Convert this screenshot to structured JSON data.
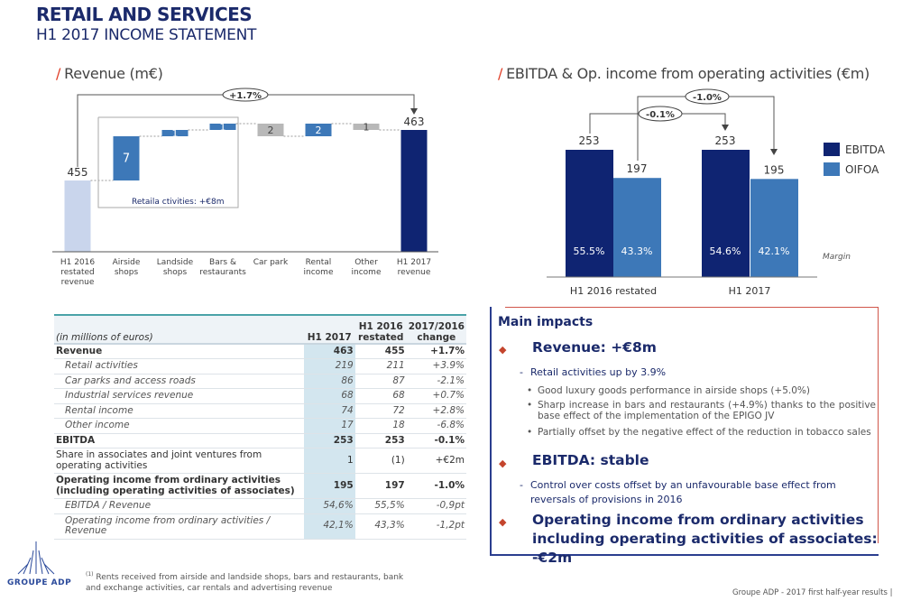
{
  "header": {
    "title": "RETAIL AND SERVICES",
    "subtitle": "H1 2017 INCOME STATEMENT"
  },
  "revenue_section": {
    "slash": "/",
    "title": "Revenue (m€)"
  },
  "ebitda_section": {
    "slash": "/",
    "title": "EBITDA & Op. income from operating activities (€m)"
  },
  "colors": {
    "navy": "#0f2472",
    "mid_blue": "#3d78b8",
    "light_blue": "#c9d5ec",
    "grey": "#b8b8b8",
    "accent_red": "#e03b24"
  },
  "chart_data": [
    {
      "type": "waterfall",
      "title": "Revenue (m€)",
      "categories": [
        "H1 2016 restated revenue",
        "Airside shops",
        "Landside shops",
        "Bars & restaurants",
        "Car park",
        "Rental income",
        "Other income",
        "H1 2017 revenue"
      ],
      "category_lines": [
        [
          "H1 2016",
          "restated",
          "revenue"
        ],
        [
          "Airside",
          "shops"
        ],
        [
          "Landside",
          "shops"
        ],
        [
          "Bars &",
          "restaurants"
        ],
        [
          "Car park"
        ],
        [
          "Rental",
          "income"
        ],
        [
          "Other",
          "income"
        ],
        [
          "H1 2017",
          "revenue"
        ]
      ],
      "values": [
        455,
        7,
        1,
        1,
        -2,
        2,
        -1,
        463
      ],
      "labels": [
        "455",
        "7",
        "1",
        "1",
        "2",
        "2",
        "1",
        "463"
      ],
      "kinds": [
        "total",
        "up",
        "up",
        "up",
        "down",
        "up",
        "down",
        "total"
      ],
      "change_label": "+1.7%",
      "annotation": "Retaila ctivities: +€8m"
    },
    {
      "type": "bar",
      "title": "EBITDA & Op. income from operating activities (€m)",
      "categories": [
        "H1 2016  restated",
        "H1 2017"
      ],
      "series": [
        {
          "name": "EBITDA",
          "values": [
            253,
            253
          ],
          "margins": [
            "55.5%",
            "54.6%"
          ]
        },
        {
          "name": "OIFOA",
          "values": [
            197,
            195
          ],
          "margins": [
            "43.3%",
            "42.1%"
          ]
        }
      ],
      "change_labels": {
        "ebitda": "-0.1%",
        "oifoa": "-1.0%"
      },
      "margin_label": "Margin",
      "legend": "right"
    }
  ],
  "table": {
    "header": [
      "(in millions of euros)",
      "H1 2017",
      "H1 2016 restated",
      "2017/2016 change"
    ],
    "rows": [
      {
        "label": "Revenue",
        "c1": "463",
        "c2": "455",
        "c3": "+1.7%",
        "style": "b"
      },
      {
        "label": "Retail activities",
        "c1": "219",
        "c2": "211",
        "c3": "+3.9%",
        "style": "i"
      },
      {
        "label": "Car parks and access roads",
        "c1": "86",
        "c2": "87",
        "c3": "-2.1%",
        "style": "i"
      },
      {
        "label": "Industrial services revenue",
        "c1": "68",
        "c2": "68",
        "c3": "+0.7%",
        "style": "i"
      },
      {
        "label": "Rental income",
        "c1": "74",
        "c2": "72",
        "c3": "+2.8%",
        "style": "i"
      },
      {
        "label": "Other income",
        "c1": "17",
        "c2": "18",
        "c3": "-6.8%",
        "style": "i"
      },
      {
        "label": "EBITDA",
        "c1": "253",
        "c2": "253",
        "c3": "-0.1%",
        "style": "b"
      },
      {
        "label": "Share in associates and joint ventures from operating activities",
        "c1": "1",
        "c2": "(1)",
        "c3": "+€2m",
        "style": "n"
      },
      {
        "label": "Operating income from ordinary activities (including operating activities of associates)",
        "c1": "195",
        "c2": "197",
        "c3": "-1.0%",
        "style": "b"
      },
      {
        "label": "EBITDA / Revenue",
        "c1": "54,6%",
        "c2": "55,5%",
        "c3": "-0,9pt",
        "style": "i"
      },
      {
        "label": "Operating income from ordinary activities / Revenue",
        "c1": "42,1%",
        "c2": "43,3%",
        "c3": "-1,2pt",
        "style": "i"
      }
    ]
  },
  "impacts": {
    "title": "Main impacts",
    "revenue": "Revenue:  +€8m",
    "revenue_sub": "Retail activities up by 3.9%",
    "revenue_points": [
      "Good luxury goods performance in airside shops (+5.0%)",
      "Sharp increase in bars and restaurants (+4.9%)  thanks to the positive base effect of the implementation of the EPIGO JV",
      "Partially offset by the negative effect of the reduction in tobacco sales"
    ],
    "ebitda": "EBITDA: stable",
    "ebitda_sub": "Control over costs offset by an unfavourable base effect from reversals of provisions in 2016",
    "op": "Operating income from ordinary activities including operating activities of associates: -€2m"
  },
  "footer": {
    "logo": "GROUPE ADP",
    "footnote_mark": "(1)",
    "footnote": "Rents received from airside and landside shops, bars and restaurants, bank and exchange activities, car rentals and advertising revenue",
    "right": "Groupe ADP - 2017 first half-year results |"
  }
}
